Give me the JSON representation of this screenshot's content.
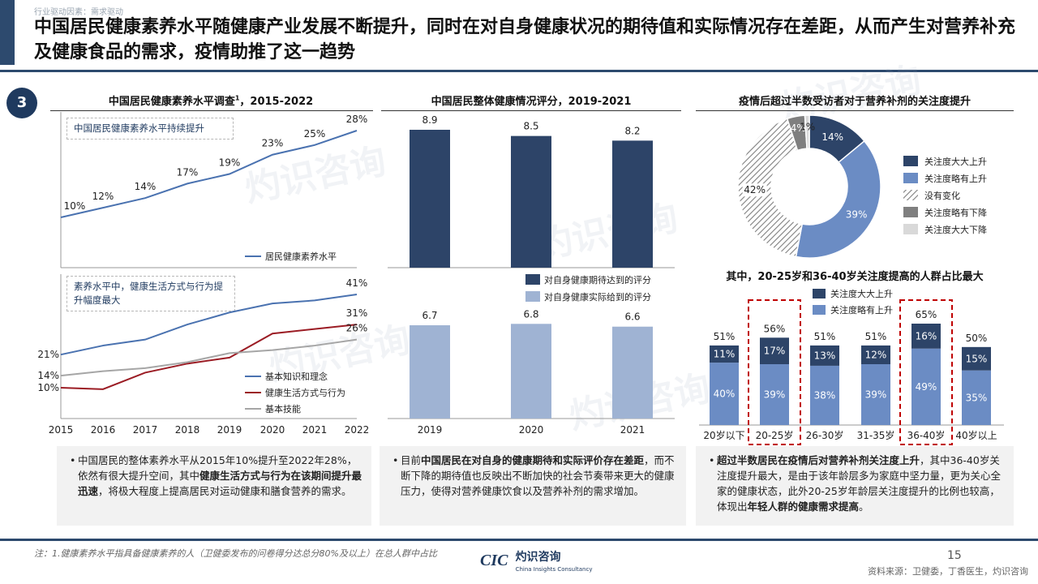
{
  "header": {
    "breadcrumb": "行业驱动因素：需求驱动",
    "title": "中国居民健康素养水平随健康产业发展不断提升，同时在对自身健康状况的期待值和实际情况存在差距，从而产生对营养补充及健康食品的需求，疫情助推了这一趋势",
    "section_number": "3"
  },
  "watermark": {
    "cn": "灼识咨询",
    "en": "China Insights Consultancy",
    "logo": "CIC"
  },
  "panel1": {
    "title": "中国居民健康素养水平调查",
    "title_sup": "1",
    "title_years": "，2015-2022",
    "top_callout": "中国居民健康素养水平持续提升",
    "bottom_callout": "素养水平中，健康生活方式与行为提升幅度最大"
  },
  "panel2": {
    "title": "中国居民整体健康情况评分，2019-2021"
  },
  "panel3": {
    "title": "疫情后超过半数受访者对于营养补剂的关注度提升",
    "subtitle": "其中，20-25岁和36-40岁关注度提高的人群占比最大"
  },
  "chart_data": [
    {
      "type": "line",
      "x": [
        "2015",
        "2016",
        "2017",
        "2018",
        "2019",
        "2020",
        "2021",
        "2022"
      ],
      "series": [
        {
          "name": "居民健康素养水平",
          "values": [
            10,
            12,
            14,
            17,
            19,
            23,
            25,
            28
          ],
          "color": "#4a72b0",
          "labels": [
            "10%",
            "12%",
            "14%",
            "17%",
            "19%",
            "23%",
            "25%",
            "28%"
          ]
        }
      ],
      "ylim": [
        0,
        30
      ]
    },
    {
      "type": "line",
      "x": [
        "2015",
        "2016",
        "2017",
        "2018",
        "2019",
        "2020",
        "2021",
        "2022"
      ],
      "series": [
        {
          "name": "基本知识和理念",
          "values": [
            21,
            24,
            26,
            31,
            35,
            38,
            39,
            41
          ],
          "color": "#4a72b0",
          "start_label": "21%",
          "end_label": "41%"
        },
        {
          "name": "健康生活方式与行为",
          "values": [
            10,
            9.5,
            15,
            18,
            20,
            28,
            29.5,
            31
          ],
          "color": "#9b1c24",
          "start_label": "10%",
          "end_label": "31%"
        },
        {
          "name": "基本技能",
          "values": [
            14,
            15.5,
            16.5,
            18.5,
            21.5,
            22.5,
            24,
            26
          ],
          "color": "#a6a6a6",
          "start_label": "14%",
          "end_label": "26%"
        }
      ],
      "ylim": [
        0,
        45
      ]
    },
    {
      "type": "bar",
      "categories": [
        "2019",
        "2020",
        "2021"
      ],
      "series": [
        {
          "name": "对自身健康期待达到的评分",
          "values": [
            8.9,
            8.5,
            8.2
          ],
          "color": "#2d4468"
        },
        {
          "name": "对自身健康实际给到的评分",
          "values": [
            6.7,
            6.8,
            6.6
          ],
          "color": "#9fb3d3"
        }
      ],
      "ylim": [
        0,
        10
      ]
    },
    {
      "type": "pie",
      "donut": true,
      "slices": [
        {
          "name": "关注度大大上升",
          "value": 14,
          "label": "14%",
          "color": "#2d4468"
        },
        {
          "name": "关注度略有上升",
          "value": 39,
          "label": "39%",
          "color": "#6b8cc4"
        },
        {
          "name": "没有变化",
          "value": 42,
          "label": "42%",
          "color": "#c8c8c8",
          "pattern": "hatch"
        },
        {
          "name": "关注度略有下降",
          "value": 4,
          "label": "4%",
          "color": "#7f7f7f"
        },
        {
          "name": "关注度大大下降",
          "value": 1,
          "label": "1%",
          "color": "#d9d9d9"
        }
      ]
    },
    {
      "type": "bar",
      "stacked": true,
      "categories": [
        "20岁以下",
        "20-25岁",
        "26-30岁",
        "31-35岁",
        "36-40岁",
        "40岁以上"
      ],
      "series": [
        {
          "name": "关注度略有上升",
          "values": [
            40,
            39,
            38,
            39,
            49,
            35
          ],
          "color": "#6b8cc4"
        },
        {
          "name": "关注度大大上升",
          "values": [
            11,
            17,
            13,
            12,
            16,
            15
          ],
          "color": "#2d4468"
        }
      ],
      "totals": [
        "51%",
        "56%",
        "51%",
        "51%",
        "65%",
        "50%"
      ],
      "highlighted": [
        "20-25岁",
        "36-40岁"
      ]
    }
  ],
  "notes": {
    "left_html": "中国居民的整体素养水平从2015年10%提升至2022年28%，依然有很大提升空间，其中<b>健康生活方式与行为在该期间提升最迅速</b>，将极大程度上提高居民对运动健康和膳食营养的需求。",
    "middle_html": "目前<b>中国居民在对自身的健康期待和实际评价存在差距</b>，而不断下降的期待值也反映出不断加快的社会节奏带来更大的健康压力，使得对营养健康饮食以及营养补剂的需求增加。",
    "right_html": "<b>超过半数居民在疫情后对营养补剂关注度上升</b>，其中36-40岁关注度提升最大，是由于该年龄层多为家庭中坚力量，更为关心全家的健康状态，此外20-25岁年龄层关注度提升的比例也较高，体现出<b>年轻人群的健康需求提高</b>。"
  },
  "footer": {
    "footnote": "注：1.健康素养水平指具备健康素养的人（卫健委发布的问卷得分达总分80%及以上）在总人群中占比",
    "source": "资料来源：卫健委，丁香医生，灼识咨询",
    "page": "15",
    "logo_en": "China Insights Consultancy"
  }
}
